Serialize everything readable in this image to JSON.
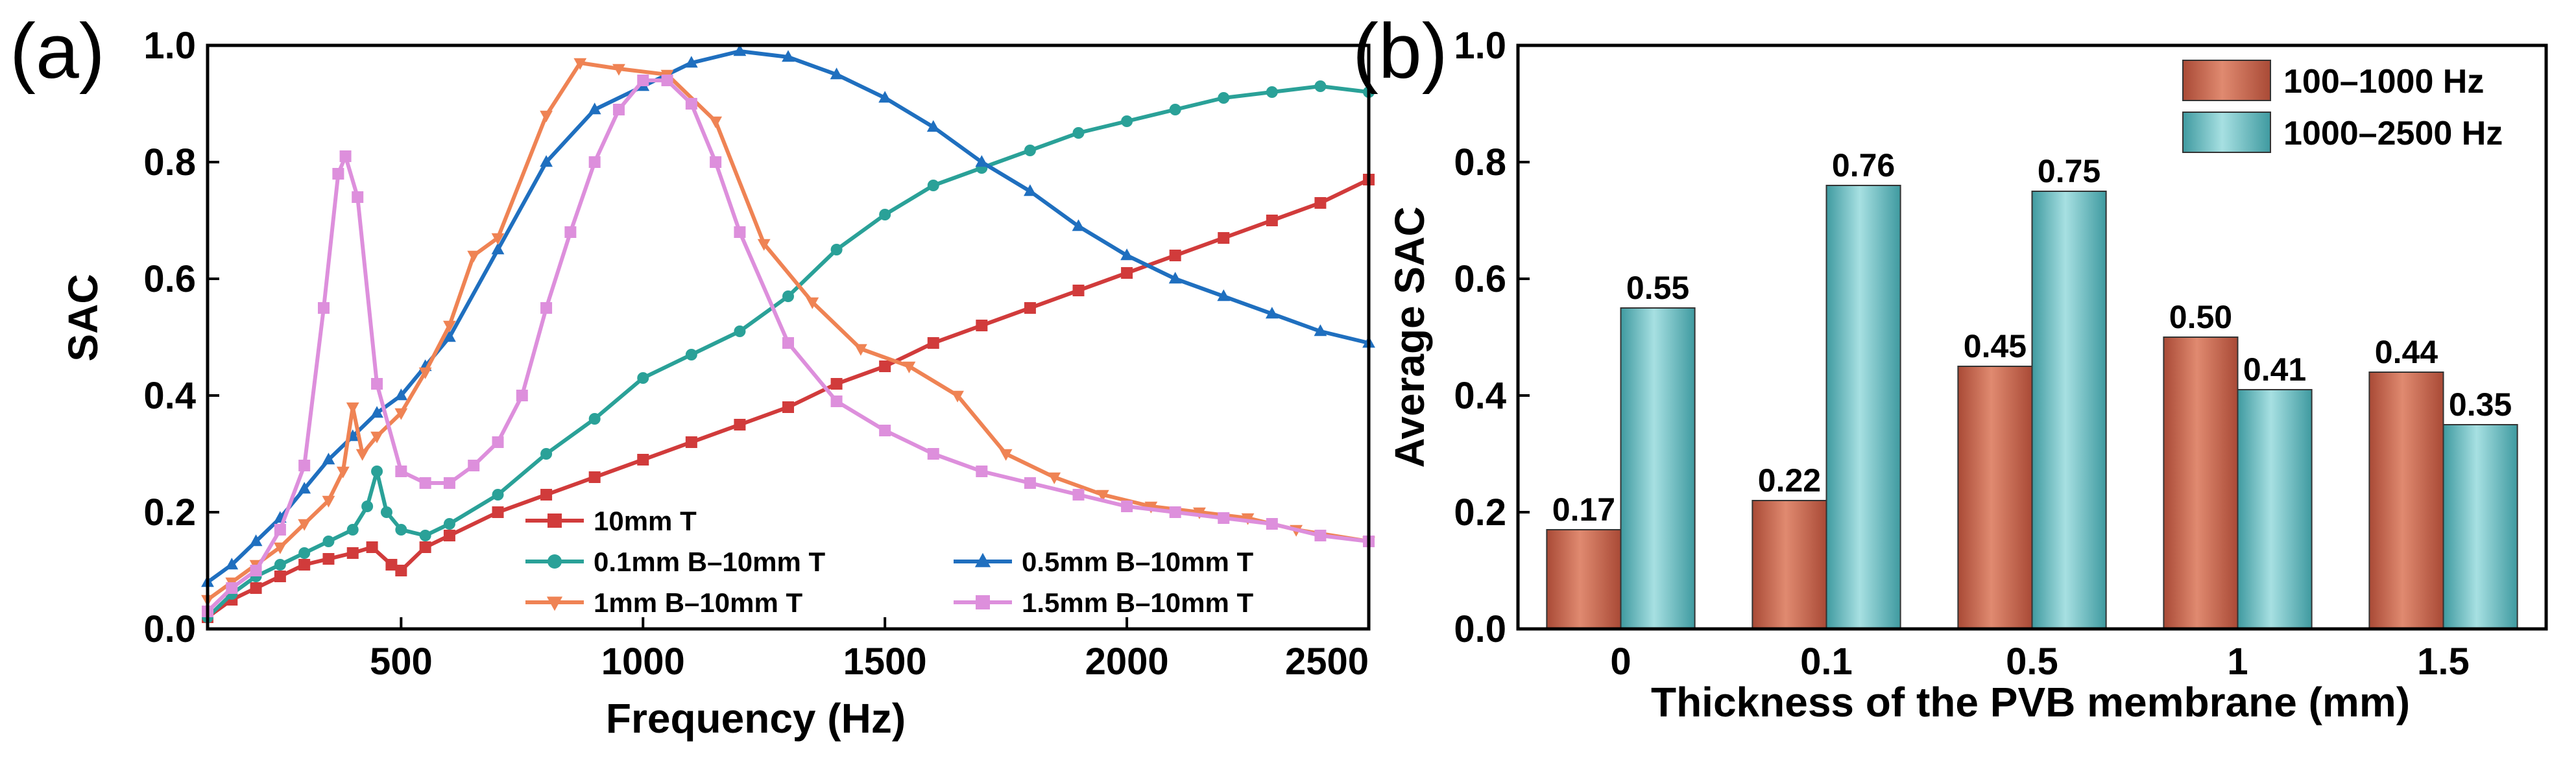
{
  "chart_data": [
    {
      "panel": "(a)",
      "type": "line",
      "title": "",
      "xlabel": "Frequency (Hz)",
      "ylabel": "SAC",
      "xlim": [
        100,
        2500
      ],
      "ylim": [
        0,
        1.0
      ],
      "xticks": [
        500,
        1000,
        1500,
        2000,
        2500
      ],
      "yticks": [
        0.0,
        0.2,
        0.4,
        0.6,
        0.8,
        1.0
      ],
      "xtick_labels": [
        "500",
        "1000",
        "1500",
        "2000",
        "2500"
      ],
      "ytick_labels": [
        "0.0",
        "0.2",
        "0.4",
        "0.6",
        "0.8",
        "1.0"
      ],
      "legend_position": "bottom-right",
      "series": [
        {
          "name": "10mm T",
          "color": "#d13b3b",
          "marker": "square",
          "points": [
            [
              100,
              0.02
            ],
            [
              150,
              0.05
            ],
            [
              200,
              0.07
            ],
            [
              250,
              0.09
            ],
            [
              300,
              0.11
            ],
            [
              350,
              0.12
            ],
            [
              400,
              0.13
            ],
            [
              440,
              0.14
            ],
            [
              480,
              0.11
            ],
            [
              500,
              0.1
            ],
            [
              550,
              0.14
            ],
            [
              600,
              0.16
            ],
            [
              700,
              0.2
            ],
            [
              800,
              0.23
            ],
            [
              900,
              0.26
            ],
            [
              1000,
              0.29
            ],
            [
              1100,
              0.32
            ],
            [
              1200,
              0.35
            ],
            [
              1300,
              0.38
            ],
            [
              1400,
              0.42
            ],
            [
              1500,
              0.45
            ],
            [
              1600,
              0.49
            ],
            [
              1700,
              0.52
            ],
            [
              1800,
              0.55
            ],
            [
              1900,
              0.58
            ],
            [
              2000,
              0.61
            ],
            [
              2100,
              0.64
            ],
            [
              2200,
              0.67
            ],
            [
              2300,
              0.7
            ],
            [
              2400,
              0.73
            ],
            [
              2500,
              0.77
            ]
          ]
        },
        {
          "name": "0.1mm B–10mm T",
          "color": "#2aa198",
          "marker": "circle",
          "points": [
            [
              100,
              0.02
            ],
            [
              150,
              0.06
            ],
            [
              200,
              0.09
            ],
            [
              250,
              0.11
            ],
            [
              300,
              0.13
            ],
            [
              350,
              0.15
            ],
            [
              400,
              0.17
            ],
            [
              430,
              0.21
            ],
            [
              450,
              0.27
            ],
            [
              470,
              0.2
            ],
            [
              500,
              0.17
            ],
            [
              550,
              0.16
            ],
            [
              600,
              0.18
            ],
            [
              700,
              0.23
            ],
            [
              800,
              0.3
            ],
            [
              900,
              0.36
            ],
            [
              1000,
              0.43
            ],
            [
              1100,
              0.47
            ],
            [
              1200,
              0.51
            ],
            [
              1300,
              0.57
            ],
            [
              1400,
              0.65
            ],
            [
              1500,
              0.71
            ],
            [
              1600,
              0.76
            ],
            [
              1700,
              0.79
            ],
            [
              1800,
              0.82
            ],
            [
              1900,
              0.85
            ],
            [
              2000,
              0.87
            ],
            [
              2100,
              0.89
            ],
            [
              2200,
              0.91
            ],
            [
              2300,
              0.92
            ],
            [
              2400,
              0.93
            ],
            [
              2500,
              0.92
            ]
          ]
        },
        {
          "name": "0.5mm B–10mm T",
          "color": "#1f6fbf",
          "marker": "triangle-up",
          "points": [
            [
              100,
              0.08
            ],
            [
              150,
              0.11
            ],
            [
              200,
              0.15
            ],
            [
              250,
              0.19
            ],
            [
              300,
              0.24
            ],
            [
              350,
              0.29
            ],
            [
              400,
              0.33
            ],
            [
              450,
              0.37
            ],
            [
              500,
              0.4
            ],
            [
              550,
              0.45
            ],
            [
              600,
              0.5
            ],
            [
              700,
              0.65
            ],
            [
              800,
              0.8
            ],
            [
              900,
              0.89
            ],
            [
              1000,
              0.93
            ],
            [
              1100,
              0.97
            ],
            [
              1200,
              0.99
            ],
            [
              1300,
              0.98
            ],
            [
              1400,
              0.95
            ],
            [
              1500,
              0.91
            ],
            [
              1600,
              0.86
            ],
            [
              1700,
              0.8
            ],
            [
              1800,
              0.75
            ],
            [
              1900,
              0.69
            ],
            [
              2000,
              0.64
            ],
            [
              2100,
              0.6
            ],
            [
              2200,
              0.57
            ],
            [
              2300,
              0.54
            ],
            [
              2400,
              0.51
            ],
            [
              2500,
              0.49
            ]
          ]
        },
        {
          "name": "1mm B–10mm T",
          "color": "#ef8354",
          "marker": "triangle-down",
          "points": [
            [
              100,
              0.05
            ],
            [
              150,
              0.08
            ],
            [
              200,
              0.11
            ],
            [
              250,
              0.14
            ],
            [
              300,
              0.18
            ],
            [
              350,
              0.22
            ],
            [
              380,
              0.27
            ],
            [
              400,
              0.38
            ],
            [
              420,
              0.3
            ],
            [
              450,
              0.33
            ],
            [
              500,
              0.37
            ],
            [
              550,
              0.44
            ],
            [
              600,
              0.52
            ],
            [
              650,
              0.64
            ],
            [
              700,
              0.67
            ],
            [
              800,
              0.88
            ],
            [
              870,
              0.97
            ],
            [
              950,
              0.96
            ],
            [
              1050,
              0.95
            ],
            [
              1150,
              0.87
            ],
            [
              1250,
              0.66
            ],
            [
              1350,
              0.56
            ],
            [
              1450,
              0.48
            ],
            [
              1550,
              0.45
            ],
            [
              1650,
              0.4
            ],
            [
              1750,
              0.3
            ],
            [
              1850,
              0.26
            ],
            [
              1950,
              0.23
            ],
            [
              2050,
              0.21
            ],
            [
              2150,
              0.2
            ],
            [
              2250,
              0.19
            ],
            [
              2350,
              0.17
            ],
            [
              2500,
              0.15
            ]
          ]
        },
        {
          "name": "1.5mm B–10mm T",
          "color": "#dd8fdc",
          "marker": "square",
          "points": [
            [
              100,
              0.03
            ],
            [
              150,
              0.07
            ],
            [
              200,
              0.1
            ],
            [
              250,
              0.17
            ],
            [
              300,
              0.28
            ],
            [
              340,
              0.55
            ],
            [
              370,
              0.78
            ],
            [
              385,
              0.81
            ],
            [
              410,
              0.74
            ],
            [
              450,
              0.42
            ],
            [
              500,
              0.27
            ],
            [
              550,
              0.25
            ],
            [
              600,
              0.25
            ],
            [
              650,
              0.28
            ],
            [
              700,
              0.32
            ],
            [
              750,
              0.4
            ],
            [
              800,
              0.55
            ],
            [
              850,
              0.68
            ],
            [
              900,
              0.8
            ],
            [
              950,
              0.89
            ],
            [
              1000,
              0.94
            ],
            [
              1050,
              0.94
            ],
            [
              1100,
              0.9
            ],
            [
              1150,
              0.8
            ],
            [
              1200,
              0.68
            ],
            [
              1300,
              0.49
            ],
            [
              1400,
              0.39
            ],
            [
              1500,
              0.34
            ],
            [
              1600,
              0.3
            ],
            [
              1700,
              0.27
            ],
            [
              1800,
              0.25
            ],
            [
              1900,
              0.23
            ],
            [
              2000,
              0.21
            ],
            [
              2100,
              0.2
            ],
            [
              2200,
              0.19
            ],
            [
              2300,
              0.18
            ],
            [
              2400,
              0.16
            ],
            [
              2500,
              0.15
            ]
          ]
        }
      ]
    },
    {
      "panel": "(b)",
      "type": "bar",
      "title": "",
      "xlabel": "Thickness of the PVB membrane (mm)",
      "ylabel": "Average SAC",
      "categories": [
        "0",
        "0.1",
        "0.5",
        "1",
        "1.5"
      ],
      "ylim": [
        0,
        1.0
      ],
      "yticks": [
        0.0,
        0.2,
        0.4,
        0.6,
        0.8,
        1.0
      ],
      "ytick_labels": [
        "0.0",
        "0.2",
        "0.4",
        "0.6",
        "0.8",
        "1.0"
      ],
      "legend_position": "top-right",
      "series": [
        {
          "name": "100–1000 Hz",
          "color": "#c9664e",
          "values": [
            0.17,
            0.22,
            0.45,
            0.5,
            0.44
          ],
          "labels": [
            "0.17",
            "0.22",
            "0.45",
            "0.50",
            "0.44"
          ]
        },
        {
          "name": "1000–2500 Hz",
          "color": "#5cb8bc",
          "values": [
            0.55,
            0.76,
            0.75,
            0.41,
            0.35
          ],
          "labels": [
            "0.55",
            "0.76",
            "0.75",
            "0.41",
            "0.35"
          ]
        }
      ]
    }
  ]
}
